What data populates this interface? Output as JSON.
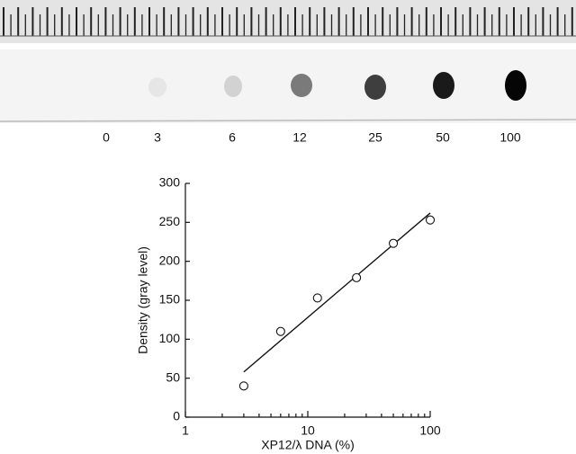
{
  "blot": {
    "lanes": [
      0,
      3,
      6,
      12,
      25,
      50,
      100
    ]
  },
  "chart_data": {
    "type": "scatter",
    "x": [
      3,
      6,
      12,
      25,
      50,
      100
    ],
    "values": [
      40,
      110,
      153,
      179,
      223,
      253
    ],
    "fit_line": {
      "x": [
        3,
        100
      ],
      "y": [
        58,
        262
      ]
    },
    "xlabel": "XP12/λ DNA (%)",
    "ylabel": "Density (gray level)",
    "xscale": "log",
    "xlim": [
      1,
      100
    ],
    "xticks": [
      1,
      10,
      100
    ],
    "ylim": [
      0,
      300
    ],
    "yticks": [
      0,
      50,
      100,
      150,
      200,
      250,
      300
    ],
    "color": "#111111"
  }
}
